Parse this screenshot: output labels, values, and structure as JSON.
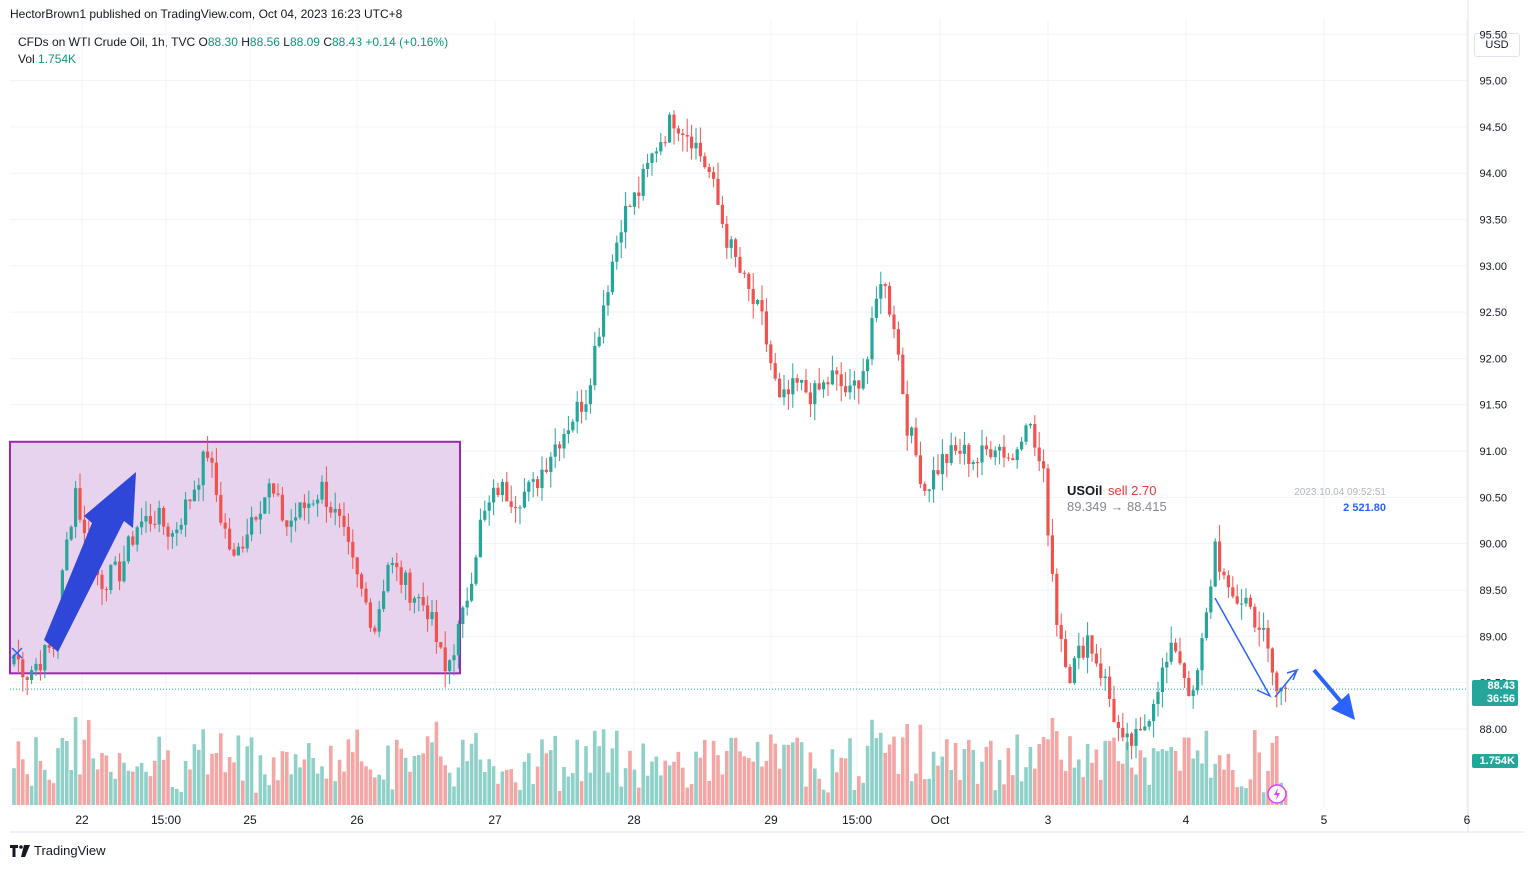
{
  "header": {
    "publisher_line": "HectorBrown1 published on TradingView.com, Oct 04, 2023 16:23 UTC+8",
    "currency": "USD"
  },
  "legend": {
    "symbol": "CFDs on WTI Crude Oil, 1h, TVC",
    "open_label": "O",
    "open": "88.30",
    "high_label": "H",
    "high": "88.56",
    "low_label": "L",
    "low": "88.09",
    "close_label": "C",
    "close": "88.43",
    "change": "+0.14 (+0.16%)",
    "vol_label": "Vol",
    "vol": "1.754K"
  },
  "price_tags": {
    "price": "88.43",
    "countdown": "36:56",
    "volume": "1.754K"
  },
  "trade_label": {
    "symbol": "USOil",
    "action": "sell 2.70",
    "prices": "89.349 → 88.415",
    "datetime": "2023.10.04 09:52:51",
    "amount": "2 521.80"
  },
  "footer": {
    "brand": "TradingView"
  },
  "colors": {
    "up": "#26a69a",
    "down": "#ef5350",
    "up_vol": "#8fd1c9",
    "down_vol": "#f4a6a4",
    "box_fill": "#e8d3ee",
    "box_border": "#9c27b0",
    "arrow": "#2f47d9",
    "line_blue": "#2962ff",
    "grid": "#f0f3fa",
    "axis_text": "#131722"
  },
  "chart_data": {
    "type": "candlestick",
    "title": "CFDs on WTI Crude Oil, 1h, TVC",
    "ylim": [
      87.2,
      95.6
    ],
    "y_ticks": [
      "88.00",
      "88.50",
      "89.00",
      "89.50",
      "90.00",
      "90.50",
      "91.00",
      "91.50",
      "92.00",
      "92.50",
      "93.00",
      "93.50",
      "94.00",
      "94.50",
      "95.00",
      "95.50"
    ],
    "x_ticks": [
      "22",
      "15:00",
      "25",
      "26",
      "27",
      "28",
      "29",
      "15:00",
      "Oct",
      "3",
      "4",
      "5",
      "6"
    ],
    "last_price": 88.43,
    "grid": true,
    "annotations": [
      "range box (Sep 21 – Sep 26)",
      "up arrow",
      "down arrow",
      "sell marker"
    ],
    "waypoints_close": [
      [
        0,
        88.8
      ],
      [
        3,
        88.6
      ],
      [
        6,
        88.75
      ],
      [
        9,
        88.9
      ],
      [
        12,
        90.0
      ],
      [
        14,
        90.6
      ],
      [
        17,
        89.8
      ],
      [
        20,
        89.6
      ],
      [
        24,
        89.7
      ],
      [
        28,
        90.2
      ],
      [
        32,
        90.3
      ],
      [
        36,
        90.1
      ],
      [
        40,
        90.5
      ],
      [
        44,
        91.0
      ],
      [
        47,
        90.3
      ],
      [
        50,
        89.8
      ],
      [
        54,
        90.3
      ],
      [
        58,
        90.6
      ],
      [
        62,
        90.2
      ],
      [
        66,
        90.4
      ],
      [
        70,
        90.6
      ],
      [
        74,
        90.2
      ],
      [
        78,
        89.6
      ],
      [
        82,
        89.1
      ],
      [
        85,
        89.8
      ],
      [
        90,
        89.5
      ],
      [
        94,
        89.3
      ],
      [
        98,
        88.6
      ],
      [
        102,
        89.2
      ],
      [
        106,
        90.2
      ],
      [
        110,
        90.6
      ],
      [
        114,
        90.5
      ],
      [
        118,
        90.6
      ],
      [
        122,
        91.0
      ],
      [
        126,
        91.3
      ],
      [
        130,
        91.6
      ],
      [
        134,
        92.6
      ],
      [
        138,
        93.5
      ],
      [
        142,
        93.8
      ],
      [
        146,
        94.3
      ],
      [
        150,
        94.6
      ],
      [
        154,
        94.4
      ],
      [
        158,
        94.0
      ],
      [
        162,
        93.3
      ],
      [
        166,
        92.8
      ],
      [
        170,
        92.4
      ],
      [
        174,
        91.5
      ],
      [
        178,
        91.7
      ],
      [
        182,
        91.6
      ],
      [
        186,
        91.8
      ],
      [
        190,
        91.6
      ],
      [
        194,
        92.0
      ],
      [
        197,
        92.9
      ],
      [
        200,
        92.4
      ],
      [
        203,
        91.3
      ],
      [
        207,
        90.6
      ],
      [
        211,
        90.9
      ],
      [
        215,
        91.0
      ],
      [
        219,
        90.9
      ],
      [
        223,
        91.1
      ],
      [
        227,
        90.9
      ],
      [
        230,
        91.4
      ],
      [
        234,
        90.7
      ],
      [
        237,
        89.2
      ],
      [
        240,
        88.6
      ],
      [
        244,
        89.0
      ],
      [
        248,
        88.5
      ],
      [
        252,
        87.8
      ],
      [
        256,
        87.9
      ],
      [
        260,
        88.5
      ],
      [
        264,
        88.9
      ],
      [
        268,
        88.3
      ],
      [
        271,
        89.2
      ],
      [
        273,
        90.0
      ],
      [
        276,
        89.4
      ],
      [
        280,
        89.4
      ],
      [
        284,
        89.0
      ],
      [
        287,
        88.4
      ],
      [
        289,
        88.43
      ]
    ]
  }
}
